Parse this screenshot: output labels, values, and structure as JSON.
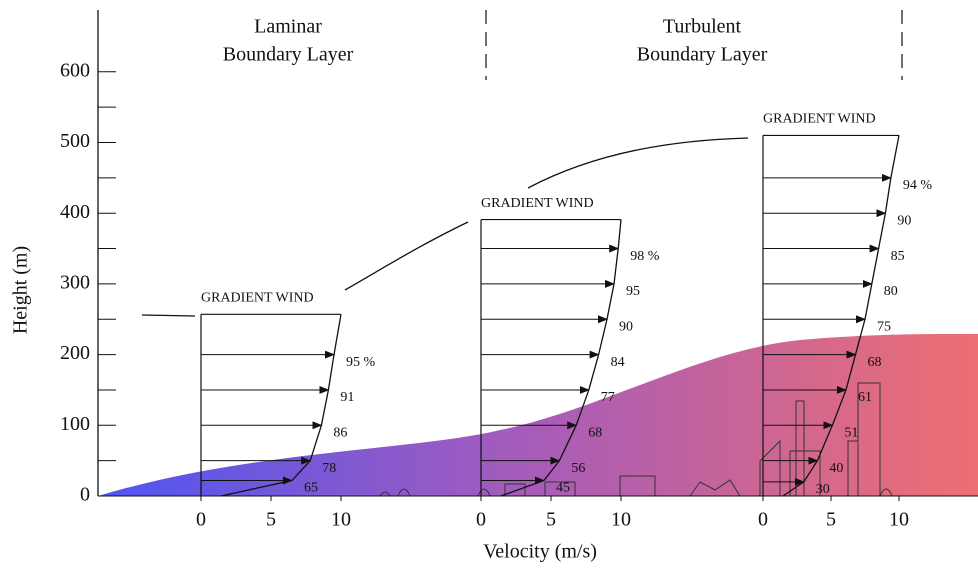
{
  "y_axis": {
    "label": "Height (m)",
    "ticks": [
      0,
      100,
      200,
      300,
      400,
      500,
      600
    ]
  },
  "x_axis": {
    "label": "Velocity (m/s)"
  },
  "sections": [
    {
      "title": [
        "Laminar",
        "Boundary Layer"
      ]
    },
    {
      "title": [
        "Turbulent",
        "Boundary Layer"
      ]
    }
  ],
  "profiles": [
    {
      "label": "GRADIENT WIND",
      "gradient_height": 257,
      "xticks": [
        0,
        5,
        10
      ],
      "arrows": [
        {
          "height": 200,
          "percent": 95,
          "label": "95 %"
        },
        {
          "height": 150,
          "percent": 91,
          "label": "91"
        },
        {
          "height": 100,
          "percent": 86,
          "label": "86"
        },
        {
          "height": 50,
          "percent": 78,
          "label": "78"
        },
        {
          "height": 22,
          "percent": 65,
          "label": "65"
        }
      ]
    },
    {
      "label": "GRADIENT WIND",
      "gradient_height": 391,
      "xticks": [
        0,
        5,
        10
      ],
      "arrows": [
        {
          "height": 350,
          "percent": 98,
          "label": "98 %"
        },
        {
          "height": 300,
          "percent": 95,
          "label": "95"
        },
        {
          "height": 250,
          "percent": 90,
          "label": "90"
        },
        {
          "height": 200,
          "percent": 84,
          "label": "84"
        },
        {
          "height": 150,
          "percent": 77,
          "label": "77"
        },
        {
          "height": 100,
          "percent": 68,
          "label": "68"
        },
        {
          "height": 50,
          "percent": 56,
          "label": "56"
        },
        {
          "height": 22,
          "percent": 45,
          "label": "45"
        }
      ]
    },
    {
      "label": "GRADIENT WIND",
      "gradient_height": 510,
      "xticks": [
        0,
        5,
        10
      ],
      "arrows": [
        {
          "height": 450,
          "percent": 94,
          "label": "94 %"
        },
        {
          "height": 400,
          "percent": 90,
          "label": "90"
        },
        {
          "height": 350,
          "percent": 85,
          "label": "85"
        },
        {
          "height": 300,
          "percent": 80,
          "label": "80"
        },
        {
          "height": 250,
          "percent": 75,
          "label": "75"
        },
        {
          "height": 200,
          "percent": 68,
          "label": "68"
        },
        {
          "height": 150,
          "percent": 61,
          "label": "61"
        },
        {
          "height": 100,
          "percent": 51,
          "label": "51"
        },
        {
          "height": 50,
          "percent": 40,
          "label": "40"
        },
        {
          "height": 20,
          "percent": 30,
          "label": "30"
        }
      ]
    }
  ]
}
